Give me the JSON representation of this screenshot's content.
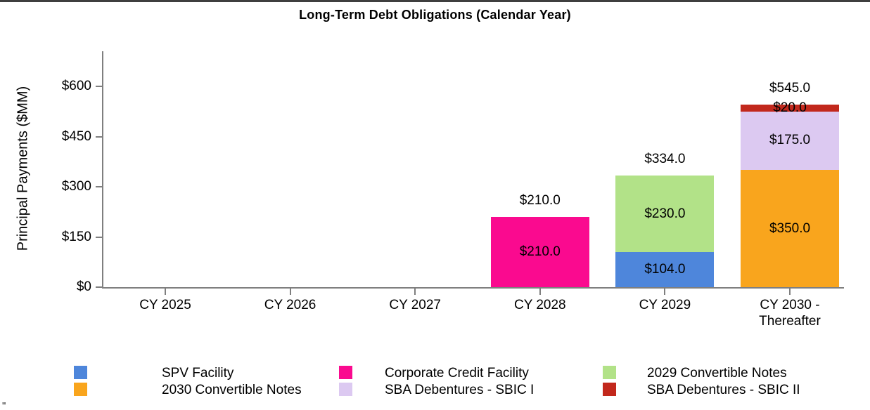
{
  "title": "Long-Term Debt Obligations (Calendar Year)",
  "footnote_mark": "\"",
  "colors": {
    "axis": "#7F7F7F",
    "text": "#000000",
    "top_rule": "#3F3F3F"
  },
  "chart_data": {
    "type": "bar",
    "stacked": true,
    "title": "Long-Term Debt Obligations (Calendar Year)",
    "ylabel": "Principal Payments ($MM)",
    "xlabel": "",
    "ylim": [
      0,
      600
    ],
    "yticks": [
      0,
      150,
      300,
      450,
      600
    ],
    "ytick_labels": [
      "$0",
      "$150",
      "$300",
      "$450",
      "$600"
    ],
    "categories": [
      "CY 2025",
      "CY 2026",
      "CY 2027",
      "CY 2028",
      "CY 2029",
      "CY 2030 - Thereafter"
    ],
    "series": [
      {
        "name": "SPV Facility",
        "color": "#4E86DB",
        "values": [
          0,
          0,
          0,
          0,
          104,
          0
        ]
      },
      {
        "name": "Corporate Credit Facility",
        "color": "#FA0A8F",
        "values": [
          0,
          0,
          0,
          210,
          0,
          0
        ]
      },
      {
        "name": "2029 Convertible Notes",
        "color": "#B2E288",
        "values": [
          0,
          0,
          0,
          0,
          230,
          0
        ]
      },
      {
        "name": "2030 Convertible Notes",
        "color": "#F9A51D",
        "values": [
          0,
          0,
          0,
          0,
          0,
          350
        ]
      },
      {
        "name": "SBA Debentures - SBIC I",
        "color": "#DCC9F1",
        "values": [
          0,
          0,
          0,
          0,
          0,
          175
        ]
      },
      {
        "name": "SBA Debentures - SBIC II",
        "color": "#C2281C",
        "values": [
          0,
          0,
          0,
          0,
          0,
          20
        ]
      }
    ],
    "segment_labels": [
      [
        "",
        "",
        "",
        "",
        "$104.0",
        ""
      ],
      [
        "",
        "",
        "",
        "$210.0",
        "",
        ""
      ],
      [
        "",
        "",
        "",
        "",
        "$230.0",
        ""
      ],
      [
        "",
        "",
        "",
        "",
        "",
        "$350.0"
      ],
      [
        "",
        "",
        "",
        "",
        "",
        "$175.0"
      ],
      [
        "",
        "",
        "",
        "",
        "",
        "$20.0"
      ]
    ],
    "totals": [
      null,
      null,
      null,
      210.0,
      334.0,
      545.0
    ],
    "total_labels": [
      "",
      "",
      "",
      "$210.0",
      "$334.0",
      "$545.0"
    ],
    "grid": false,
    "legend_position": "bottom",
    "legend_rows": 2,
    "legend_columns": 3
  }
}
